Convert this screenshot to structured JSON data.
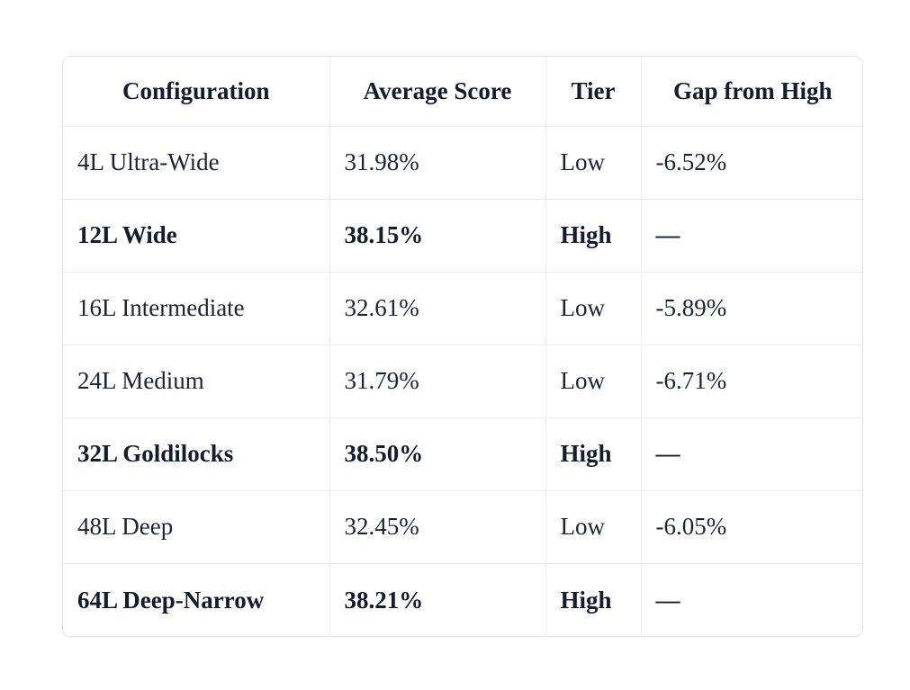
{
  "colors": {
    "page_background": "#ffffff",
    "card_background": "#ffffff",
    "card_border": "#e6e6ea",
    "divider": "#ededf0",
    "text": "#1b2433",
    "text_bold": "#141d2e"
  },
  "table": {
    "columns": [
      {
        "key": "configuration",
        "label": "Configuration"
      },
      {
        "key": "average_score",
        "label": "Average Score"
      },
      {
        "key": "tier",
        "label": "Tier"
      },
      {
        "key": "gap_from_high",
        "label": "Gap from High"
      }
    ],
    "rows": [
      {
        "configuration": "4L Ultra-Wide",
        "average_score": "31.98%",
        "tier": "Low",
        "gap_from_high": "-6.52%",
        "highlight": false
      },
      {
        "configuration": "12L Wide",
        "average_score": "38.15%",
        "tier": "High",
        "gap_from_high": "—",
        "highlight": true
      },
      {
        "configuration": "16L Intermediate",
        "average_score": "32.61%",
        "tier": "Low",
        "gap_from_high": "-5.89%",
        "highlight": false
      },
      {
        "configuration": "24L Medium",
        "average_score": "31.79%",
        "tier": "Low",
        "gap_from_high": "-6.71%",
        "highlight": false
      },
      {
        "configuration": "32L Goldilocks",
        "average_score": "38.50%",
        "tier": "High",
        "gap_from_high": "—",
        "highlight": true
      },
      {
        "configuration": "48L Deep",
        "average_score": "32.45%",
        "tier": "Low",
        "gap_from_high": "-6.05%",
        "highlight": false
      },
      {
        "configuration": "64L Deep-Narrow",
        "average_score": "38.21%",
        "tier": "High",
        "gap_from_high": "—",
        "highlight": true
      }
    ]
  }
}
